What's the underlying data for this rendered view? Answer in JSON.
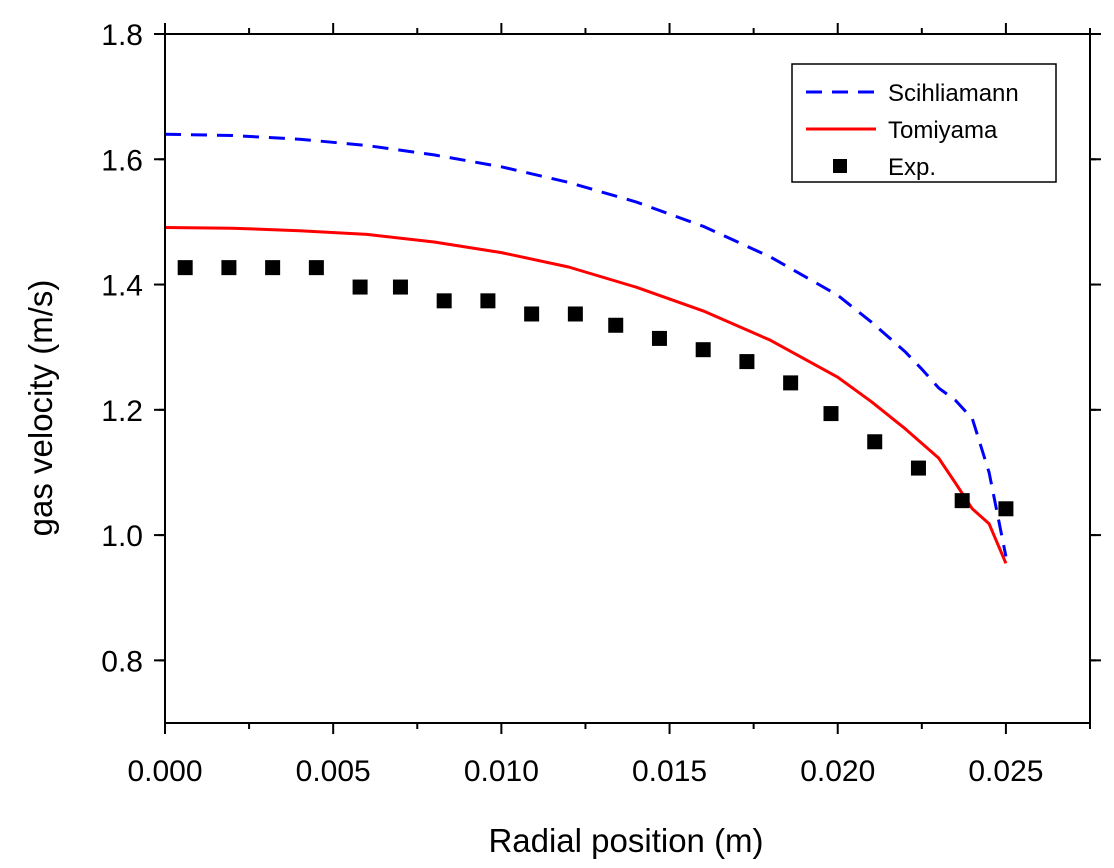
{
  "chart_data": {
    "type": "line",
    "title": "",
    "xlabel": "Radial position (m)",
    "ylabel": "gas velocity (m/s)",
    "xlim": [
      0.0,
      0.0275
    ],
    "ylim": [
      0.7,
      1.8
    ],
    "x_ticks": [
      0.0,
      0.005,
      0.01,
      0.015,
      0.02,
      0.025
    ],
    "x_tick_labels": [
      "0.000",
      "0.005",
      "0.010",
      "0.015",
      "0.020",
      "0.025"
    ],
    "y_ticks": [
      0.8,
      1.0,
      1.2,
      1.4,
      1.6,
      1.8
    ],
    "y_tick_labels": [
      "0.8",
      "1.0",
      "1.2",
      "1.4",
      "1.6",
      "1.8"
    ],
    "grid": false,
    "legend_position": "top-right",
    "series": [
      {
        "name": "Scihliamann",
        "kind": "line",
        "style": "dashed",
        "color": "#0000ff",
        "x": [
          0.0,
          0.002,
          0.004,
          0.006,
          0.008,
          0.01,
          0.012,
          0.014,
          0.016,
          0.018,
          0.02,
          0.021,
          0.022,
          0.0225,
          0.023,
          0.0235,
          0.024,
          0.0245,
          0.025
        ],
        "y": [
          1.64,
          1.638,
          1.632,
          1.622,
          1.607,
          1.588,
          1.563,
          1.532,
          1.493,
          1.444,
          1.383,
          1.34,
          1.293,
          1.265,
          1.235,
          1.215,
          1.186,
          1.1,
          0.966
        ]
      },
      {
        "name": "Tomiyama",
        "kind": "line",
        "style": "solid",
        "color": "#ff0000",
        "x": [
          0.0,
          0.002,
          0.004,
          0.006,
          0.008,
          0.01,
          0.012,
          0.014,
          0.016,
          0.018,
          0.02,
          0.021,
          0.022,
          0.023,
          0.0235,
          0.024,
          0.0245,
          0.025
        ],
        "y": [
          1.491,
          1.49,
          1.486,
          1.48,
          1.468,
          1.451,
          1.428,
          1.396,
          1.358,
          1.311,
          1.252,
          1.213,
          1.17,
          1.123,
          1.083,
          1.042,
          1.018,
          0.955
        ]
      },
      {
        "name": "Exp.",
        "kind": "scatter",
        "marker": "square",
        "color": "#000000",
        "x": [
          0.0006,
          0.0019,
          0.0032,
          0.0045,
          0.0058,
          0.007,
          0.0083,
          0.0096,
          0.0109,
          0.0122,
          0.0134,
          0.0147,
          0.016,
          0.0173,
          0.0186,
          0.0198,
          0.0211,
          0.0224,
          0.0237,
          0.025
        ],
        "y": [
          1.427,
          1.427,
          1.427,
          1.427,
          1.396,
          1.396,
          1.374,
          1.374,
          1.353,
          1.353,
          1.335,
          1.314,
          1.296,
          1.277,
          1.243,
          1.194,
          1.149,
          1.107,
          1.055,
          1.042
        ]
      }
    ]
  }
}
